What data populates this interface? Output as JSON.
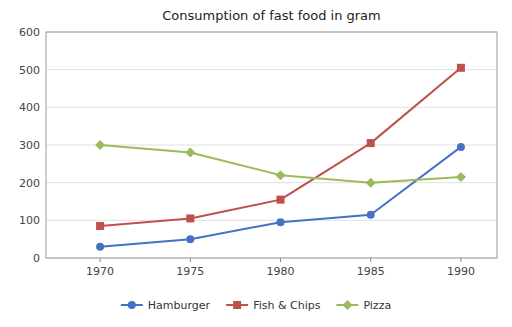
{
  "chart_data": {
    "type": "line",
    "title": "Consumption of fast food in gram",
    "x": [
      1970,
      1975,
      1980,
      1985,
      1990
    ],
    "series": [
      {
        "name": "Hamburger",
        "color": "#4472C4",
        "marker": "circle",
        "values": [
          30,
          50,
          95,
          115,
          295
        ]
      },
      {
        "name": "Fish & Chips",
        "color": "#C0504D",
        "marker": "square",
        "values": [
          85,
          105,
          155,
          305,
          505
        ]
      },
      {
        "name": "Pizza",
        "color": "#9BBB59",
        "marker": "diamond",
        "values": [
          300,
          280,
          220,
          200,
          215
        ]
      }
    ],
    "xlim": [
      1967,
      1992
    ],
    "ylim": [
      0,
      600
    ],
    "xticks": [
      1970,
      1975,
      1980,
      1985,
      1990
    ],
    "yticks": [
      0,
      100,
      200,
      300,
      400,
      500,
      600
    ],
    "grid": true,
    "legend": "bottom"
  }
}
